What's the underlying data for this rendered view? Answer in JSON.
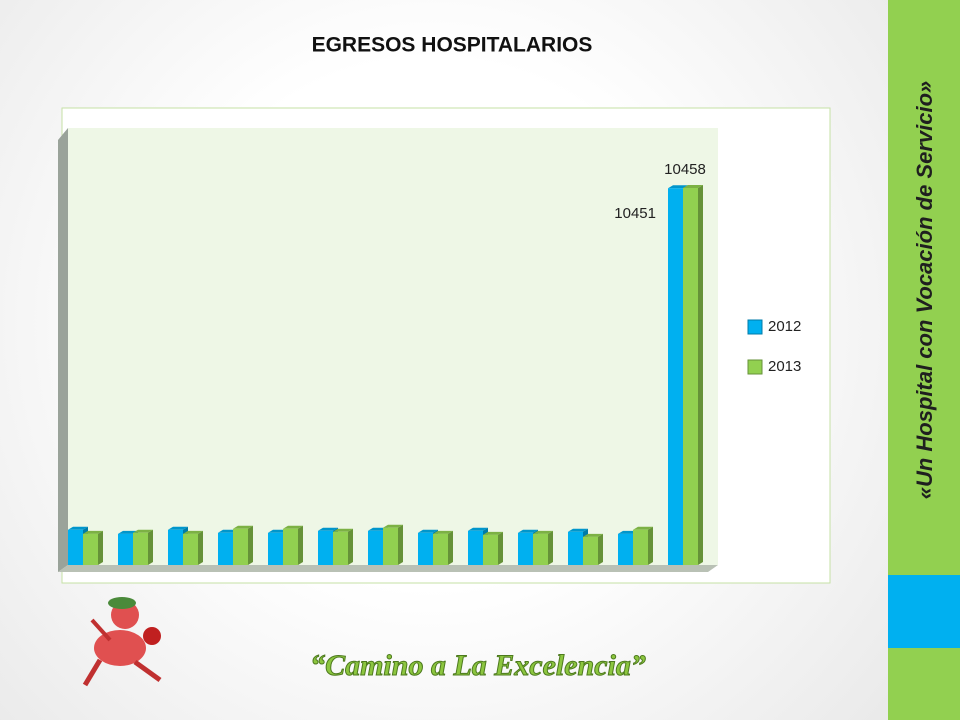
{
  "chart_data": {
    "type": "bar3d",
    "title": "EGRESOS HOSPITALARIOS",
    "categories": [
      null,
      null,
      null,
      null,
      null,
      null,
      null,
      null,
      null,
      null,
      null,
      null,
      null
    ],
    "series": [
      {
        "name": "2012",
        "color": "#00b0f0",
        "values": [
          977,
          865,
          977,
          893,
          893,
          949,
          949,
          893,
          949,
          893,
          921,
          865,
          10451
        ]
      },
      {
        "name": "2013",
        "color": "#92d050",
        "values": [
          865,
          893,
          865,
          1004,
          1004,
          921,
          1032,
          865,
          837,
          865,
          781,
          977,
          10458
        ]
      }
    ],
    "data_labels": "last",
    "legend": "right"
  },
  "slide": {
    "tagline": "«Un Hospital con Vocación de Servicio»",
    "motto": "“Camino a La Excelencia”"
  }
}
